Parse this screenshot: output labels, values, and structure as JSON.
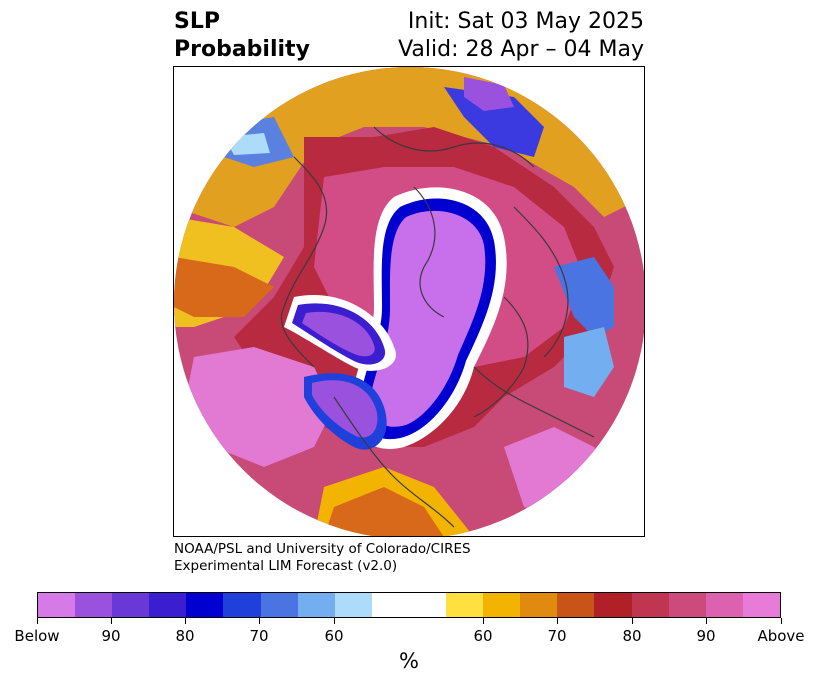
{
  "title": {
    "left_line1": "SLP",
    "left_line2": "Probability",
    "right_line1": "Init: Sat 03 May 2025",
    "right_line2": "Valid: 28 Apr – 04 May"
  },
  "credit": {
    "line1": "NOAA/PSL and University of Colorado/CIRES",
    "line2": "Experimental LIM Forecast (v2.0)"
  },
  "colorbar": {
    "unit": "%",
    "colors": [
      "#d67ae8",
      "#9a52de",
      "#6a38d6",
      "#3a1ed0",
      "#0000d0",
      "#2040dc",
      "#4a74e2",
      "#72aef0",
      "#acdcfa",
      "#ffffff",
      "#ffe040",
      "#f2b400",
      "#e08a10",
      "#c85418",
      "#b02026",
      "#c03650",
      "#cc4a7c",
      "#dc62b0",
      "#e87ad8"
    ],
    "ticks": [
      "Below",
      "90",
      "80",
      "70",
      "60",
      "60",
      "70",
      "80",
      "90",
      "Above"
    ]
  },
  "map": {
    "projection": "north-polar-stereographic",
    "field": "sea-level pressure tercile probability"
  }
}
